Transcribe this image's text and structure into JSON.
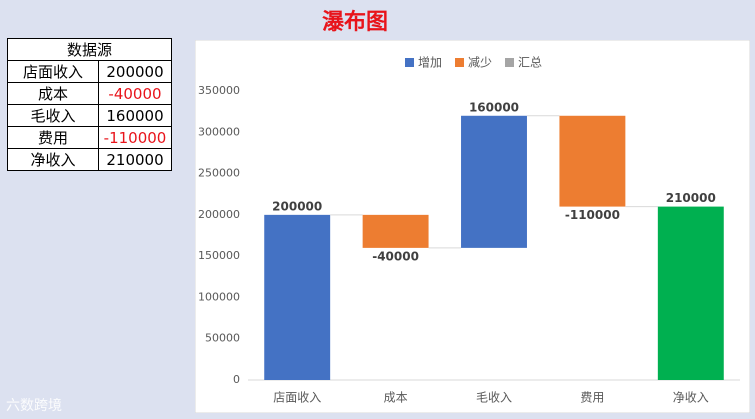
{
  "title": "瀑布图",
  "table": {
    "header": "数据源",
    "rows": [
      [
        "店面收入",
        200000
      ],
      [
        "成本",
        -40000
      ],
      [
        "毛收入",
        160000
      ],
      [
        "费用",
        -110000
      ],
      [
        "净收入",
        210000
      ]
    ]
  },
  "chart_data": {
    "type": "waterfall",
    "categories": [
      "店面收入",
      "成本",
      "毛收入",
      "费用",
      "净收入"
    ],
    "values": [
      200000,
      -40000,
      160000,
      -110000,
      210000
    ],
    "set_as_total": [
      false,
      false,
      false,
      false,
      true
    ],
    "legend": [
      {
        "name": "增加",
        "color": "#4472c4"
      },
      {
        "name": "减少",
        "color": "#ed7d31"
      },
      {
        "name": "汇总",
        "color": "#a5a5a5"
      }
    ],
    "total_bar_color": "#00b050",
    "legend_position": "top",
    "ylim": [
      0,
      350000
    ],
    "yticks": [
      0,
      50000,
      100000,
      150000,
      200000,
      250000,
      300000,
      350000
    ],
    "grid": false
  },
  "watermark": "六数跨境"
}
